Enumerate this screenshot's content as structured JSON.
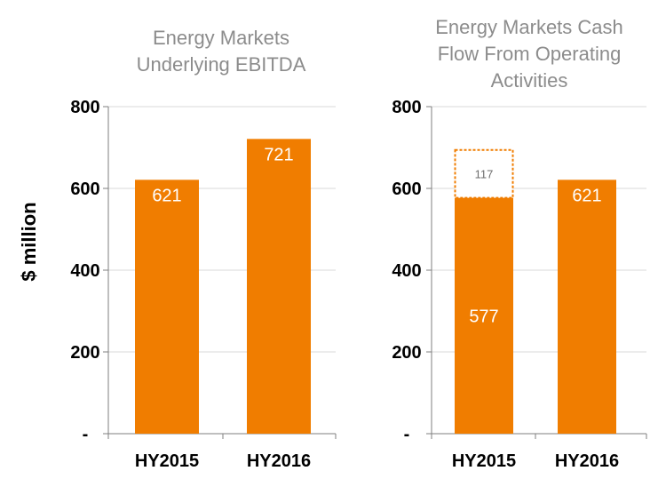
{
  "y_axis_label": "$ million",
  "chart_data": [
    {
      "type": "bar",
      "title": [
        "Energy Markets",
        "Underlying EBITDA"
      ],
      "categories": [
        "HY2015",
        "HY2016"
      ],
      "values": [
        621,
        721
      ],
      "data_labels": [
        "621",
        "721"
      ],
      "ylabel": "$ million",
      "ylim": [
        0,
        800
      ],
      "yticks": [
        0,
        200,
        400,
        600,
        800
      ],
      "ytick_labels": [
        "-",
        "200",
        "400",
        "600",
        "800"
      ],
      "grid": true,
      "bar_color": "#f07d00"
    },
    {
      "type": "bar",
      "title": [
        "Energy Markets Cash",
        "Flow From Operating",
        "Activities"
      ],
      "categories": [
        "HY2015",
        "HY2016"
      ],
      "series": [
        {
          "values": [
            577,
            621
          ],
          "data_labels": [
            "577",
            "621"
          ],
          "style": "solid"
        },
        {
          "values": [
            117,
            0
          ],
          "data_labels": [
            "117",
            ""
          ],
          "style": "dashed-outline"
        }
      ],
      "ylim": [
        0,
        800
      ],
      "yticks": [
        0,
        200,
        400,
        600,
        800
      ],
      "ytick_labels": [
        "-",
        "200",
        "400",
        "600",
        "800"
      ],
      "grid": true,
      "bar_color": "#f07d00"
    }
  ]
}
